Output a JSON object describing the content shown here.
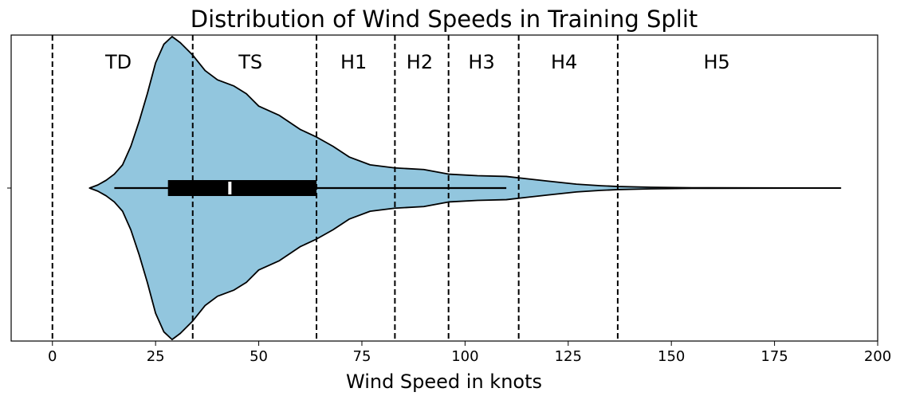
{
  "chart_data": {
    "type": "violin",
    "title": "Distribution of Wind Speeds in Training Split",
    "xlabel": "Wind Speed in knots",
    "ylabel": "",
    "xlim": [
      -10,
      200
    ],
    "xticks": [
      0,
      25,
      50,
      75,
      100,
      125,
      150,
      175,
      200
    ],
    "grid": false,
    "legend": "none",
    "fill_color": "#92c6de",
    "category_boundaries": [
      0,
      34,
      64,
      83,
      96,
      113,
      137
    ],
    "categories": [
      {
        "name": "TD",
        "label_x": 16
      },
      {
        "name": "TS",
        "label_x": 48
      },
      {
        "name": "H1",
        "label_x": 73
      },
      {
        "name": "H2",
        "label_x": 89
      },
      {
        "name": "H3",
        "label_x": 104
      },
      {
        "name": "H4",
        "label_x": 124
      },
      {
        "name": "H5",
        "label_x": 161
      }
    ],
    "violin": {
      "min": 9,
      "max": 191,
      "median": 43,
      "q1": 28,
      "q3": 64,
      "whisker_low": 15,
      "whisker_high": 110,
      "density": [
        [
          9,
          0.0
        ],
        [
          11,
          0.02
        ],
        [
          13,
          0.05
        ],
        [
          15,
          0.09
        ],
        [
          17,
          0.15
        ],
        [
          19,
          0.27
        ],
        [
          21,
          0.43
        ],
        [
          23,
          0.61
        ],
        [
          25,
          0.81
        ],
        [
          27,
          0.93
        ],
        [
          29,
          0.98
        ],
        [
          31,
          0.94
        ],
        [
          34,
          0.86
        ],
        [
          37,
          0.76
        ],
        [
          40,
          0.7
        ],
        [
          44,
          0.66
        ],
        [
          47,
          0.61
        ],
        [
          50,
          0.53
        ],
        [
          55,
          0.47
        ],
        [
          60,
          0.38
        ],
        [
          64,
          0.33
        ],
        [
          68,
          0.27
        ],
        [
          72,
          0.2
        ],
        [
          77,
          0.15
        ],
        [
          83,
          0.13
        ],
        [
          90,
          0.12
        ],
        [
          96,
          0.09
        ],
        [
          103,
          0.08
        ],
        [
          110,
          0.075
        ],
        [
          115,
          0.06
        ],
        [
          120,
          0.045
        ],
        [
          127,
          0.025
        ],
        [
          133,
          0.015
        ],
        [
          137,
          0.01
        ],
        [
          145,
          0.005
        ],
        [
          155,
          0.002
        ],
        [
          170,
          0.001
        ],
        [
          191,
          0.0005
        ]
      ]
    }
  }
}
